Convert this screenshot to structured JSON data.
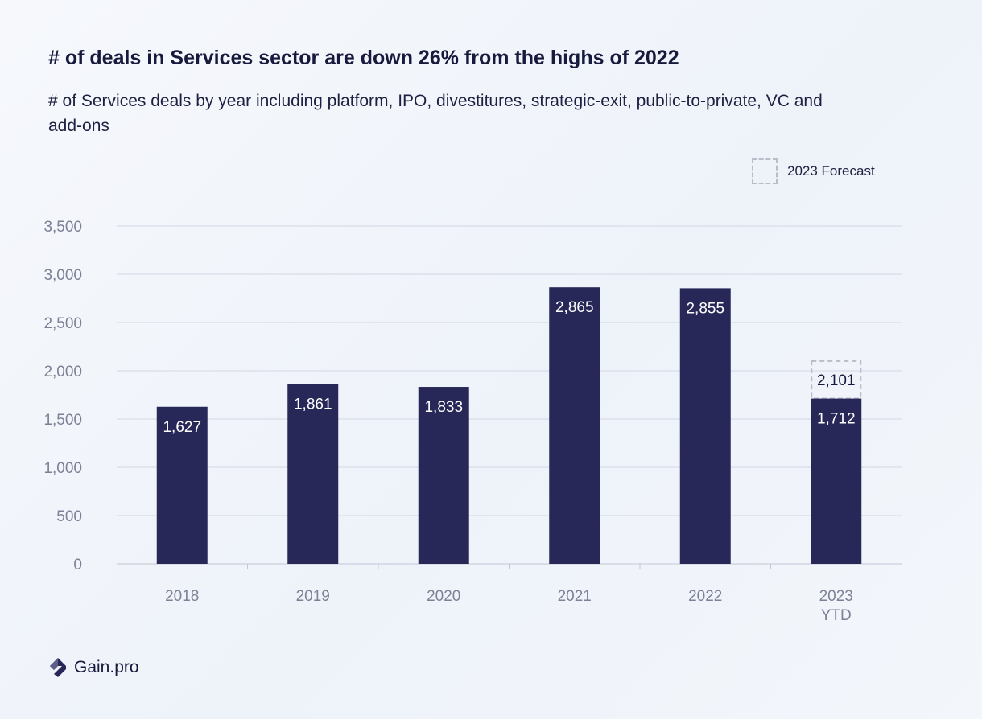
{
  "title": "# of deals in Services sector are down 26% from the highs of 2022",
  "subtitle": "# of Services deals by year including platform, IPO, divestitures, strategic-exit, public-to-private, VC and add-ons",
  "legend": {
    "label": "2023  Forecast"
  },
  "brand": {
    "name": "Gain.pro"
  },
  "colors": {
    "bar": "#282858",
    "grid": "#d3d6e4",
    "tick": "#7d8196",
    "forecast_border": "#b9bdc9"
  },
  "chart_data": {
    "type": "bar",
    "categories": [
      "2018",
      "2019",
      "2020",
      "2021",
      "2022",
      "2023\nYTD"
    ],
    "values": [
      1627,
      1861,
      1833,
      2865,
      2855,
      1712
    ],
    "value_labels": [
      "1,627",
      "1,861",
      "1,833",
      "2,865",
      "2,855",
      "1,712"
    ],
    "forecast": {
      "category": "2023\nYTD",
      "value": 2101,
      "label": "2,101"
    },
    "ylim": [
      0,
      3500
    ],
    "yticks": [
      0,
      500,
      1000,
      1500,
      2000,
      2500,
      3000,
      3500
    ],
    "ytick_labels": [
      "0",
      "500",
      "1,000",
      "1,500",
      "2,000",
      "2,500",
      "3,000",
      "3,500"
    ],
    "grid": true,
    "legend_position": "top-right"
  }
}
